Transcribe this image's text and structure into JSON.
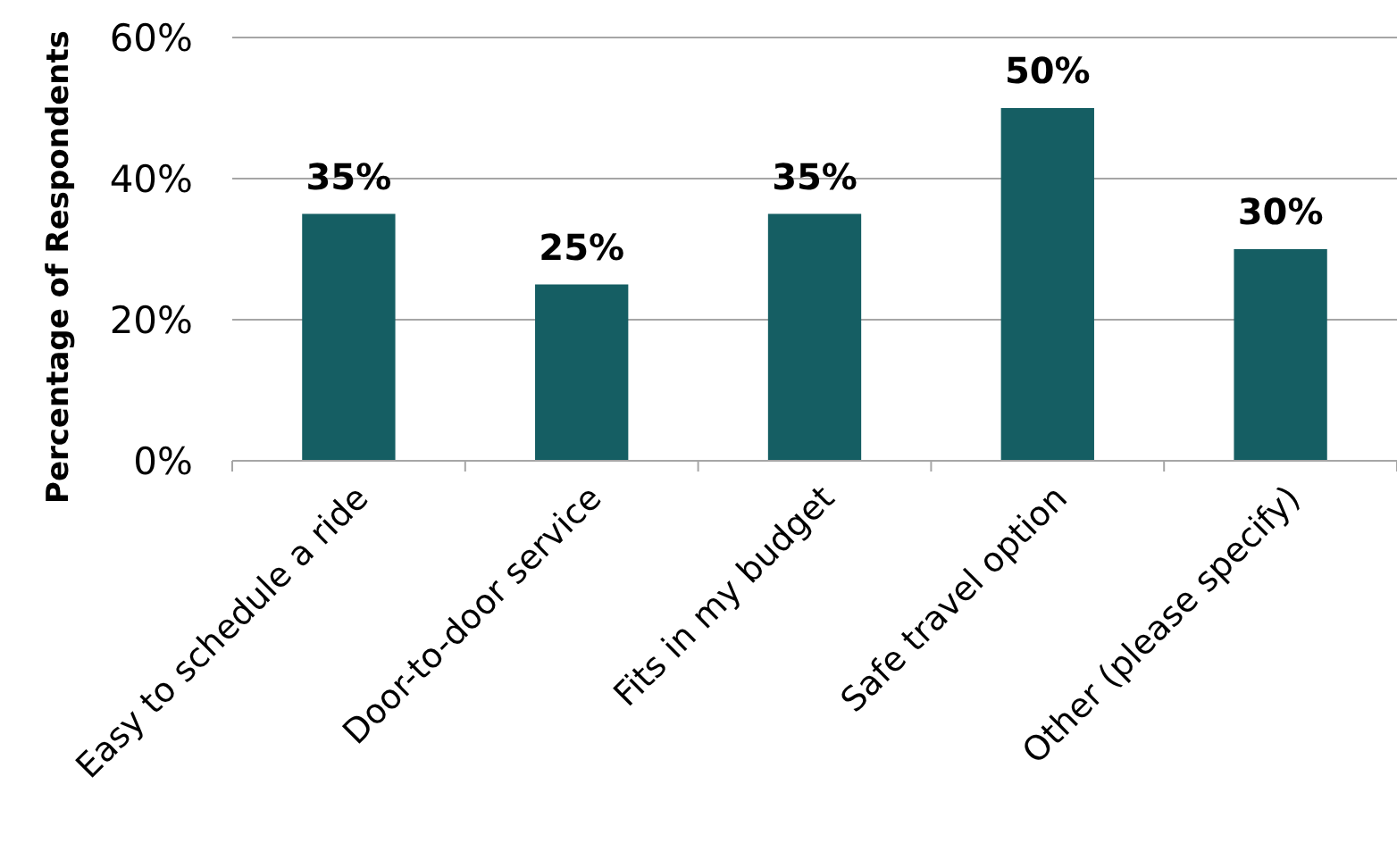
{
  "chart_data": {
    "type": "bar",
    "ylabel": "Percentage of Respondents",
    "categories": [
      "Easy to schedule a ride",
      "Door-to-door service",
      "Fits in my budget",
      "Safe travel option",
      "Other (please specify)"
    ],
    "values": [
      35,
      25,
      35,
      50,
      30
    ],
    "value_labels": [
      "35%",
      "25%",
      "35%",
      "50%",
      "30%"
    ],
    "color": "#155e63",
    "ylim": [
      0,
      60
    ],
    "yticks": [
      {
        "value": 0,
        "label": "0%"
      },
      {
        "value": 20,
        "label": "20%"
      },
      {
        "value": 40,
        "label": "40%"
      },
      {
        "value": 60,
        "label": "60%"
      }
    ],
    "grid": "y"
  }
}
